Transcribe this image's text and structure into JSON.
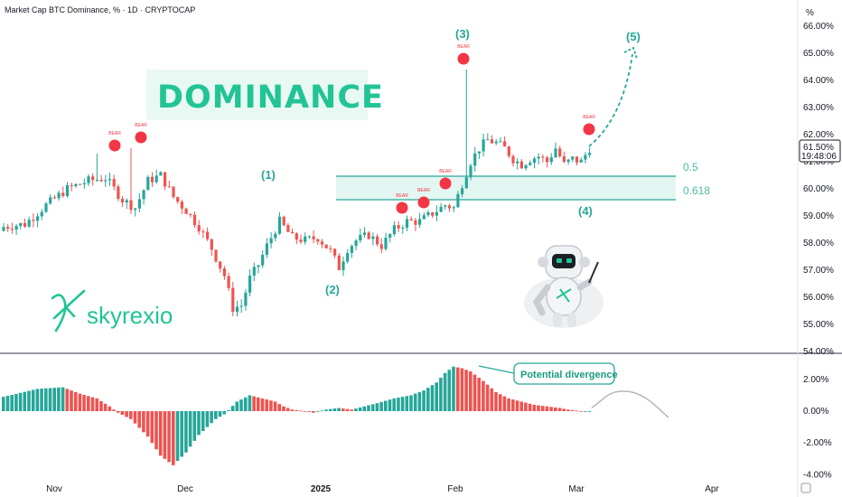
{
  "header": {
    "title": "Market Cap BTC Dominance, % · 1D · CRYPTOCAP"
  },
  "axis": {
    "unit_label": "%",
    "y_ticks": [
      "66.00%",
      "65.00%",
      "64.00%",
      "63.00%",
      "62.00%",
      "61.00%",
      "60.00%",
      "59.00%",
      "58.00%",
      "57.00%",
      "56.00%",
      "55.00%",
      "54.00%"
    ],
    "osc_ticks": [
      "2.00%",
      "0.00%",
      "-2.00%",
      "-4.00%"
    ],
    "x_ticks": [
      "Nov",
      "Dec",
      "2025",
      "Feb",
      "Mar",
      "Apr"
    ]
  },
  "price_tag": {
    "value": "61.50%",
    "countdown": "19:48:06"
  },
  "banner": {
    "text": "DOMINANCE"
  },
  "brand": {
    "text": "skyrexio"
  },
  "waves": {
    "w1": "(1)",
    "w2": "(2)",
    "w3": "(3)",
    "w4": "(4)",
    "w5": "(5)"
  },
  "zone": {
    "fib_upper": "0.5",
    "fib_lower": "0.618"
  },
  "bear_signal": "BEAR",
  "divergence_label": "Potential divergence",
  "colors": {
    "bull": "#26a69a",
    "bear": "#ef5350",
    "accent": "#22c495",
    "zone_fill": "#e4f6f1",
    "bear_dot": "#f23645",
    "projection": "#b2b5be"
  },
  "chart_data": [
    {
      "type": "candlestick",
      "title": "Market Cap BTC Dominance, % · 1D · CRYPTOCAP",
      "ylabel": "%",
      "ylim": [
        54,
        66.5
      ],
      "x_ticks": [
        "Nov",
        "Dec",
        "2025",
        "Feb",
        "Mar",
        "Apr"
      ],
      "close_path": [
        [
          0,
          58.6
        ],
        [
          5,
          58.7
        ],
        [
          10,
          59.4
        ],
        [
          15,
          60.0
        ],
        [
          20,
          60.3
        ],
        [
          24,
          60.4
        ],
        [
          28,
          59.6
        ],
        [
          31,
          59.3
        ],
        [
          34,
          60.3
        ],
        [
          37,
          60.5
        ],
        [
          40,
          59.7
        ],
        [
          43,
          59.2
        ],
        [
          46,
          58.6
        ],
        [
          49,
          57.8
        ],
        [
          52,
          56.8
        ],
        [
          54,
          55.6
        ],
        [
          56,
          55.7
        ],
        [
          58,
          56.7
        ],
        [
          60,
          57.2
        ],
        [
          62,
          57.9
        ],
        [
          65,
          58.8
        ],
        [
          68,
          58.2
        ],
        [
          71,
          58.1
        ],
        [
          74,
          58.2
        ],
        [
          77,
          57.7
        ],
        [
          79,
          57.1
        ],
        [
          81,
          57.8
        ],
        [
          83,
          58.1
        ],
        [
          86,
          58.3
        ],
        [
          89,
          57.9
        ],
        [
          92,
          58.5
        ],
        [
          95,
          58.8
        ],
        [
          98,
          58.8
        ],
        [
          100,
          59.0
        ],
        [
          102,
          59.2
        ],
        [
          104,
          59.4
        ],
        [
          106,
          59.3
        ],
        [
          108,
          60.2
        ],
        [
          110,
          61.0
        ],
        [
          112,
          61.5
        ],
        [
          114,
          61.8
        ],
        [
          116,
          61.7
        ],
        [
          118,
          61.5
        ],
        [
          120,
          61.1
        ],
        [
          122,
          60.9
        ],
        [
          124,
          61.1
        ],
        [
          126,
          61.2
        ],
        [
          128,
          61.0
        ],
        [
          130,
          61.5
        ],
        [
          132,
          60.9
        ],
        [
          134,
          61.1
        ],
        [
          136,
          61.0
        ],
        [
          138,
          61.5
        ]
      ],
      "wick_high_points": [
        [
          22,
          61.3
        ],
        [
          30,
          61.5
        ],
        [
          109,
          64.4
        ]
      ],
      "reference_lines": {
        "upper": 60.45,
        "lower": 59.55
      },
      "bear_signals_price": [
        61.6,
        61.9,
        59.3,
        59.5,
        60.2,
        64.8,
        62.2
      ],
      "projection_target": 65.0
    },
    {
      "type": "histogram",
      "title": "",
      "ylim": [
        -4.2,
        3.0
      ],
      "ticks": [
        "2.00%",
        "0.00%",
        "-2.00%",
        "-4.00%"
      ],
      "values_path": [
        [
          0,
          0.9
        ],
        [
          8,
          1.4
        ],
        [
          14,
          1.5
        ],
        [
          18,
          1.1
        ],
        [
          22,
          0.8
        ],
        [
          25,
          0.3
        ],
        [
          27,
          -0.1
        ],
        [
          30,
          -0.5
        ],
        [
          34,
          -1.6
        ],
        [
          37,
          -2.8
        ],
        [
          40,
          -3.4
        ],
        [
          43,
          -2.6
        ],
        [
          46,
          -1.5
        ],
        [
          50,
          -0.5
        ],
        [
          52,
          -0.2
        ],
        [
          55,
          0.6
        ],
        [
          58,
          1.0
        ],
        [
          61,
          0.8
        ],
        [
          64,
          0.6
        ],
        [
          66,
          0.3
        ],
        [
          68,
          0.1
        ],
        [
          71,
          0.0
        ],
        [
          73,
          -0.1
        ],
        [
          76,
          0.1
        ],
        [
          79,
          0.2
        ],
        [
          82,
          0.1
        ],
        [
          85,
          0.3
        ],
        [
          88,
          0.5
        ],
        [
          92,
          0.8
        ],
        [
          96,
          1.0
        ],
        [
          99,
          1.3
        ],
        [
          102,
          1.8
        ],
        [
          104,
          2.4
        ],
        [
          106,
          2.8
        ],
        [
          108,
          2.7
        ],
        [
          110,
          2.5
        ],
        [
          113,
          1.9
        ],
        [
          116,
          1.2
        ],
        [
          119,
          0.8
        ],
        [
          122,
          0.6
        ],
        [
          125,
          0.4
        ],
        [
          128,
          0.3
        ],
        [
          131,
          0.2
        ],
        [
          133,
          0.1
        ],
        [
          136,
          0.0
        ]
      ]
    }
  ]
}
